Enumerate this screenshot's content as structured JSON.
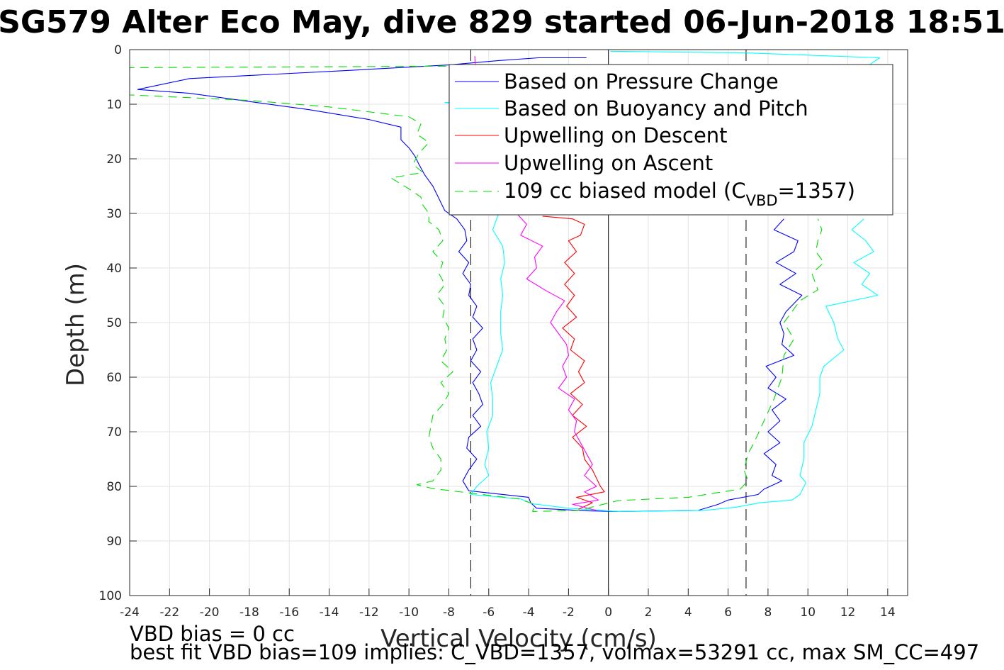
{
  "chart_data": {
    "type": "line",
    "title": "SG579 Alter Eco May, dive 829 started 06-Jun-2018 18:51",
    "xlabel": "Vertical Velocity (cm/s)",
    "ylabel": "Depth (m)",
    "xlim": [
      -24,
      15
    ],
    "ylim": [
      0,
      100
    ],
    "y_reversed": true,
    "grid": true,
    "legend_position": "top-right",
    "xticks": [
      "-24",
      "-22",
      "-20",
      "-18",
      "-16",
      "-14",
      "-12",
      "-10",
      "-8",
      "-6",
      "-4",
      "-2",
      "0",
      "2",
      "4",
      "6",
      "8",
      "10",
      "12",
      "14"
    ],
    "yticks": [
      "0",
      "10",
      "20",
      "30",
      "40",
      "50",
      "60",
      "70",
      "80",
      "90",
      "100"
    ],
    "legend": {
      "pressure": "Based on Pressure Change",
      "buoyancy": "Based on Buoyancy and Pitch",
      "up_descent": "Upwelling on Descent",
      "up_ascent": "Upwelling on Ascent",
      "model_prefix": "109 cc biased model (C",
      "model_sub": "VBD",
      "model_suffix": "=1357)"
    },
    "reference_lines": {
      "zero": 0,
      "dashed": [
        -6.9,
        6.9
      ]
    },
    "colors": {
      "pressure": "#0000ff",
      "buoyancy": "#00ffff",
      "up_descent": "#ff0000",
      "up_ascent": "#ff00ff",
      "model": "#00dd00"
    },
    "series": [
      {
        "name": "Based on Pressure Change",
        "key": "pressure",
        "style": "solid",
        "points": [
          [
            -1.1,
            1.5
          ],
          [
            -3.5,
            1.5
          ],
          [
            -5.5,
            2
          ],
          [
            -8,
            2.8
          ],
          [
            -13,
            3.8
          ],
          [
            -21,
            5.3
          ],
          [
            -23.6,
            7.3
          ],
          [
            -21,
            8
          ],
          [
            -18,
            9.5
          ],
          [
            -15,
            11
          ],
          [
            -12,
            12.8
          ],
          [
            -10.4,
            14.2
          ],
          [
            -10.4,
            16.5
          ],
          [
            -10,
            18
          ],
          [
            -9.7,
            19.5
          ],
          [
            -9.5,
            21
          ],
          [
            -9.2,
            23
          ],
          [
            -8.8,
            25
          ],
          [
            -8.6,
            26.5
          ],
          [
            -8.4,
            28
          ],
          [
            -8.2,
            29.5
          ],
          [
            -7.6,
            31
          ],
          [
            -7.2,
            33
          ],
          [
            -7.1,
            35
          ],
          [
            -7.5,
            37
          ],
          [
            -7.0,
            39
          ],
          [
            -7.3,
            41
          ],
          [
            -6.9,
            43
          ],
          [
            -7.0,
            45
          ],
          [
            -6.6,
            47
          ],
          [
            -6.8,
            49
          ],
          [
            -6.3,
            51
          ],
          [
            -6.8,
            53
          ],
          [
            -6.6,
            55
          ],
          [
            -6.9,
            57
          ],
          [
            -6.4,
            59
          ],
          [
            -6.8,
            61
          ],
          [
            -6.5,
            63
          ],
          [
            -6.3,
            65
          ],
          [
            -6.8,
            67
          ],
          [
            -6.4,
            69
          ],
          [
            -7.0,
            71
          ],
          [
            -7.1,
            73
          ],
          [
            -6.6,
            75
          ],
          [
            -7.0,
            77
          ],
          [
            -7.3,
            79
          ],
          [
            -7.0,
            80.8
          ],
          [
            -4,
            82
          ],
          [
            -3.9,
            83
          ],
          [
            -3.6,
            84
          ],
          [
            -1,
            84.5
          ],
          [
            0.5,
            84.6
          ],
          [
            4.5,
            84.4
          ],
          [
            5.5,
            83.3
          ],
          [
            6,
            82.5
          ],
          [
            7.5,
            81.5
          ],
          [
            7.8,
            80.5
          ],
          [
            8.7,
            79
          ],
          [
            8.2,
            78
          ],
          [
            8.4,
            76
          ],
          [
            7.8,
            74
          ],
          [
            8.6,
            72
          ],
          [
            8.0,
            70
          ],
          [
            8.6,
            68
          ],
          [
            8.2,
            66
          ],
          [
            8.9,
            64
          ],
          [
            8.0,
            62
          ],
          [
            8.4,
            60
          ],
          [
            7.9,
            58
          ],
          [
            9.3,
            56
          ],
          [
            8.7,
            54
          ],
          [
            8.8,
            52
          ],
          [
            8.6,
            50
          ],
          [
            8.9,
            48
          ],
          [
            9.7,
            45
          ],
          [
            8.6,
            43
          ],
          [
            9.4,
            41
          ],
          [
            8.4,
            39
          ],
          [
            9.3,
            37
          ],
          [
            9.5,
            35
          ],
          [
            8.3,
            33
          ],
          [
            8.8,
            31
          ]
        ]
      },
      {
        "name": "Based on Buoyancy and Pitch",
        "key": "buoyancy",
        "style": "solid",
        "points": [
          [
            0.1,
            0.3
          ],
          [
            6.9,
            0.6
          ],
          [
            13.6,
            1.5
          ],
          [
            13.0,
            3
          ],
          [
            12.8,
            5
          ],
          [
            8.6,
            8
          ],
          [
            3.0,
            9
          ],
          [
            -6.5,
            9.3
          ],
          [
            -8.2,
            9.7
          ],
          [
            -6.0,
            10.5
          ],
          [
            -5.5,
            30
          ],
          [
            -5.8,
            33
          ],
          [
            -5.3,
            36
          ],
          [
            -5.2,
            39
          ],
          [
            -5.4,
            42
          ],
          [
            -5.3,
            45
          ],
          [
            -5.4,
            48
          ],
          [
            -5.4,
            52
          ],
          [
            -5.3,
            55
          ],
          [
            -5.6,
            58
          ],
          [
            -5.9,
            61
          ],
          [
            -5.8,
            64
          ],
          [
            -5.8,
            67
          ],
          [
            -6.1,
            70
          ],
          [
            -6.0,
            73
          ],
          [
            -6.2,
            76
          ],
          [
            -6.0,
            78
          ],
          [
            -6.6,
            80
          ],
          [
            -6.9,
            81.5
          ],
          [
            -4.4,
            82.3
          ],
          [
            -3.8,
            83.2
          ],
          [
            -2,
            84
          ],
          [
            0.5,
            84.6
          ],
          [
            4.8,
            84.4
          ],
          [
            6.4,
            83.8
          ],
          [
            7.6,
            83
          ],
          [
            9.2,
            82.5
          ],
          [
            9.6,
            81.5
          ],
          [
            9.9,
            79.3
          ],
          [
            9.6,
            78
          ],
          [
            9.8,
            75
          ],
          [
            9.8,
            72
          ],
          [
            10.2,
            69
          ],
          [
            10.4,
            66
          ],
          [
            10.6,
            63
          ],
          [
            10.6,
            60
          ],
          [
            10.8,
            58
          ],
          [
            11.8,
            55
          ],
          [
            11.5,
            53
          ],
          [
            11.3,
            50
          ],
          [
            10.9,
            47
          ],
          [
            13.5,
            45
          ],
          [
            12.7,
            43
          ],
          [
            13.1,
            41
          ],
          [
            12.3,
            39
          ],
          [
            13.3,
            37
          ],
          [
            12.9,
            35
          ],
          [
            12.2,
            33
          ],
          [
            12.8,
            31
          ]
        ]
      },
      {
        "name": "Upwelling on Descent",
        "key": "up_descent",
        "style": "solid",
        "points": [
          [
            -3.3,
            30.5
          ],
          [
            -1.8,
            31
          ],
          [
            -1.2,
            32
          ],
          [
            -1.4,
            34
          ],
          [
            -2.0,
            35
          ],
          [
            -1.6,
            37
          ],
          [
            -2.2,
            39
          ],
          [
            -1.7,
            41
          ],
          [
            -2.2,
            43
          ],
          [
            -1.7,
            45
          ],
          [
            -2.1,
            47
          ],
          [
            -1.6,
            49
          ],
          [
            -2.3,
            51
          ],
          [
            -1.7,
            53
          ],
          [
            -1.9,
            55
          ],
          [
            -1.2,
            57
          ],
          [
            -1.5,
            59
          ],
          [
            -1.2,
            61
          ],
          [
            -1.9,
            63
          ],
          [
            -1.3,
            65
          ],
          [
            -1.8,
            67
          ],
          [
            -1.1,
            69
          ],
          [
            -1.8,
            71
          ],
          [
            -1.3,
            73
          ],
          [
            -1.2,
            75
          ],
          [
            -0.8,
            77
          ],
          [
            -0.6,
            78.5
          ],
          [
            -0.4,
            80
          ],
          [
            -0.2,
            81
          ],
          [
            -1.6,
            82
          ],
          [
            -0.8,
            83
          ],
          [
            -1.5,
            84.2
          ]
        ]
      },
      {
        "name": "Upwelling on Ascent",
        "key": "up_ascent",
        "style": "solid",
        "points": [
          [
            -6.7,
            1.2
          ],
          [
            -6.6,
            9.5
          ],
          [
            -4.6,
            30
          ],
          [
            -4.1,
            32
          ],
          [
            -4.4,
            34
          ],
          [
            -3.3,
            36
          ],
          [
            -3.7,
            38
          ],
          [
            -3.6,
            40
          ],
          [
            -4.1,
            42
          ],
          [
            -3.2,
            44
          ],
          [
            -2.2,
            46
          ],
          [
            -2.6,
            48
          ],
          [
            -2.9,
            50
          ],
          [
            -2.5,
            52
          ],
          [
            -2.1,
            54
          ],
          [
            -2.0,
            56
          ],
          [
            -2.3,
            58
          ],
          [
            -2.1,
            60
          ],
          [
            -2.5,
            62
          ],
          [
            -1.7,
            64
          ],
          [
            -2.0,
            66
          ],
          [
            -1.6,
            68
          ],
          [
            -1.7,
            70
          ],
          [
            -1.4,
            72
          ],
          [
            -1.1,
            74
          ],
          [
            -0.8,
            76
          ],
          [
            -1.2,
            78
          ],
          [
            -0.6,
            80
          ],
          [
            -1.2,
            81
          ],
          [
            -0.5,
            82.5
          ],
          [
            -1.8,
            83.3
          ],
          [
            -0.6,
            84.4
          ]
        ]
      },
      {
        "name": "109 cc biased model (C_VBD=1357)",
        "key": "model",
        "style": "dashed",
        "points": [
          [
            -6,
            3.0
          ],
          [
            -24,
            3.3
          ],
          [
            -24,
            8.3
          ],
          [
            -18,
            9.3
          ],
          [
            -14,
            10.5
          ],
          [
            -10,
            12.3
          ],
          [
            -9.4,
            13.6
          ],
          [
            -9.6,
            15.5
          ],
          [
            -9.0,
            17
          ],
          [
            -9.5,
            19
          ],
          [
            -9.8,
            21
          ],
          [
            -9.3,
            22.5
          ],
          [
            -10.9,
            23.5
          ],
          [
            -10.0,
            25.5
          ],
          [
            -9.4,
            27
          ],
          [
            -9.3,
            28.5
          ],
          [
            -9.0,
            30
          ],
          [
            -9.0,
            31.5
          ],
          [
            -8.5,
            33
          ],
          [
            -8.3,
            35
          ],
          [
            -8.8,
            37
          ],
          [
            -8.3,
            39
          ],
          [
            -8.5,
            41
          ],
          [
            -8.2,
            43
          ],
          [
            -8.6,
            45
          ],
          [
            -8.2,
            47
          ],
          [
            -8.3,
            49
          ],
          [
            -8.0,
            51
          ],
          [
            -8.2,
            53
          ],
          [
            -8.1,
            55
          ],
          [
            -8.4,
            57
          ],
          [
            -7.8,
            59
          ],
          [
            -8.4,
            61
          ],
          [
            -8.0,
            63
          ],
          [
            -8.3,
            65
          ],
          [
            -8.8,
            67
          ],
          [
            -8.9,
            69
          ],
          [
            -9.0,
            71
          ],
          [
            -8.8,
            73
          ],
          [
            -8.4,
            75
          ],
          [
            -8.4,
            77
          ],
          [
            -8.8,
            79
          ],
          [
            -9.6,
            79.7
          ],
          [
            -8.8,
            80.4
          ],
          [
            -4.5,
            82.3
          ],
          [
            -3.7,
            83.3
          ],
          [
            -3.8,
            84.6
          ],
          [
            -1.5,
            84.4
          ],
          [
            0.5,
            82.6
          ],
          [
            4.0,
            82.0
          ],
          [
            6.6,
            80.5
          ],
          [
            7.0,
            79
          ],
          [
            6.8,
            77
          ],
          [
            7.0,
            74
          ],
          [
            7.3,
            72
          ],
          [
            7.8,
            68
          ],
          [
            8.3,
            64
          ],
          [
            8.7,
            60
          ],
          [
            8.8,
            56
          ],
          [
            9.3,
            53
          ],
          [
            8.8,
            50
          ],
          [
            9.6,
            46
          ],
          [
            10.5,
            44
          ],
          [
            10.2,
            41
          ],
          [
            10.8,
            39
          ],
          [
            10.4,
            37
          ],
          [
            10.5,
            35
          ],
          [
            10.7,
            33
          ],
          [
            10.5,
            31
          ]
        ]
      }
    ]
  },
  "footer": {
    "note1": "VBD bias = 0 cc",
    "note2": "best fit VBD bias=109 implies: C_VBD=1357, volmax=53291 cc, max SM_CC=497"
  }
}
